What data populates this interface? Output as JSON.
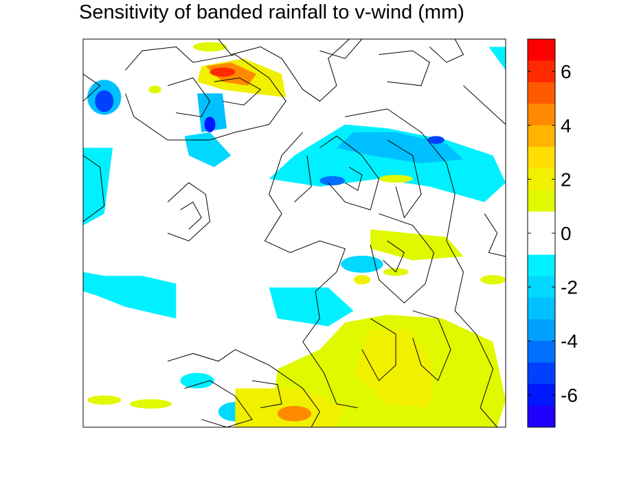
{
  "chart_data": {
    "type": "heatmap",
    "title": "Sensitivity of banded rainfall to v-wind (mm)",
    "xlabel": "",
    "ylabel": "",
    "colorbar": {
      "range": [
        -7.2,
        7.2
      ],
      "bin_width": 0.9,
      "tick_values": [
        6,
        4,
        2,
        0,
        -2,
        -4,
        -6
      ],
      "tick_labels": [
        "6",
        "4",
        "2",
        "0",
        "-2",
        "-4",
        "-6"
      ],
      "colors_top_to_bottom": [
        "#ff0000",
        "#ff2a00",
        "#ff5a00",
        "#ff8a00",
        "#ffb400",
        "#ffde00",
        "#f0f000",
        "#e0f800",
        "#ffffff",
        "#ffffff",
        "#00f0ff",
        "#00d8ff",
        "#00c0ff",
        "#00a0ff",
        "#0070ff",
        "#0040ff",
        "#0018ff",
        "#2000ff"
      ]
    },
    "overlay": "black contour lines (terrain)",
    "blobs": [
      {
        "value": 2.4,
        "shape": "polygon",
        "points": [
          [
            0.28,
            0.07
          ],
          [
            0.38,
            0.05
          ],
          [
            0.47,
            0.09
          ],
          [
            0.48,
            0.15
          ],
          [
            0.4,
            0.14
          ],
          [
            0.33,
            0.13
          ],
          [
            0.27,
            0.11
          ]
        ]
      },
      {
        "value": 4.8,
        "shape": "polygon",
        "points": [
          [
            0.29,
            0.07
          ],
          [
            0.35,
            0.06
          ],
          [
            0.41,
            0.09
          ],
          [
            0.39,
            0.12
          ],
          [
            0.33,
            0.11
          ]
        ]
      },
      {
        "value": 6.0,
        "shape": "ellipse",
        "cx": 0.33,
        "cy": 0.085,
        "rx": 0.03,
        "ry": 0.012
      },
      {
        "value": -3.0,
        "shape": "ellipse",
        "cx": 0.05,
        "cy": 0.15,
        "rx": 0.04,
        "ry": 0.045
      },
      {
        "value": -5.5,
        "shape": "ellipse",
        "cx": 0.05,
        "cy": 0.16,
        "rx": 0.022,
        "ry": 0.028
      },
      {
        "value": -1.5,
        "shape": "polygon",
        "points": [
          [
            0.0,
            0.28
          ],
          [
            0.07,
            0.28
          ],
          [
            0.05,
            0.45
          ],
          [
            0.0,
            0.48
          ]
        ]
      },
      {
        "value": -1.5,
        "shape": "polygon",
        "points": [
          [
            0.0,
            0.6
          ],
          [
            0.05,
            0.61
          ],
          [
            0.14,
            0.61
          ],
          [
            0.22,
            0.63
          ],
          [
            0.22,
            0.72
          ],
          [
            0.1,
            0.69
          ],
          [
            0.03,
            0.66
          ],
          [
            0.0,
            0.65
          ]
        ]
      },
      {
        "value": -2.3,
        "shape": "polygon",
        "points": [
          [
            0.24,
            0.25
          ],
          [
            0.3,
            0.24
          ],
          [
            0.35,
            0.3
          ],
          [
            0.31,
            0.33
          ],
          [
            0.25,
            0.3
          ]
        ]
      },
      {
        "value": -2.5,
        "shape": "polygon",
        "points": [
          [
            0.27,
            0.14
          ],
          [
            0.33,
            0.14
          ],
          [
            0.34,
            0.23
          ],
          [
            0.28,
            0.24
          ]
        ]
      },
      {
        "value": -6.0,
        "shape": "ellipse",
        "cx": 0.3,
        "cy": 0.22,
        "rx": 0.013,
        "ry": 0.02
      },
      {
        "value": -1.5,
        "shape": "polygon",
        "points": [
          [
            0.62,
            0.22
          ],
          [
            0.72,
            0.23
          ],
          [
            0.86,
            0.26
          ],
          [
            0.97,
            0.3
          ],
          [
            1.0,
            0.37
          ],
          [
            0.95,
            0.42
          ],
          [
            0.82,
            0.38
          ],
          [
            0.7,
            0.36
          ],
          [
            0.56,
            0.38
          ],
          [
            0.44,
            0.36
          ],
          [
            0.5,
            0.3
          ]
        ]
      },
      {
        "value": -2.5,
        "shape": "polygon",
        "points": [
          [
            0.64,
            0.24
          ],
          [
            0.74,
            0.24
          ],
          [
            0.86,
            0.27
          ],
          [
            0.9,
            0.31
          ],
          [
            0.8,
            0.32
          ],
          [
            0.68,
            0.3
          ],
          [
            0.6,
            0.28
          ]
        ]
      },
      {
        "value": -4.5,
        "shape": "ellipse",
        "cx": 0.59,
        "cy": 0.365,
        "rx": 0.03,
        "ry": 0.012
      },
      {
        "value": -5.5,
        "shape": "ellipse",
        "cx": 0.835,
        "cy": 0.26,
        "rx": 0.02,
        "ry": 0.01
      },
      {
        "value": -1.5,
        "shape": "polygon",
        "points": [
          [
            0.96,
            0.02
          ],
          [
            1.0,
            0.02
          ],
          [
            1.0,
            0.08
          ]
        ]
      },
      {
        "value": -1.5,
        "shape": "polygon",
        "points": [
          [
            0.44,
            0.64
          ],
          [
            0.58,
            0.64
          ],
          [
            0.64,
            0.7
          ],
          [
            0.58,
            0.74
          ],
          [
            0.46,
            0.72
          ]
        ]
      },
      {
        "value": -2.0,
        "shape": "ellipse",
        "cx": 0.66,
        "cy": 0.58,
        "rx": 0.05,
        "ry": 0.022
      },
      {
        "value": -1.5,
        "shape": "ellipse",
        "cx": 0.27,
        "cy": 0.88,
        "rx": 0.04,
        "ry": 0.02
      },
      {
        "value": -2.2,
        "shape": "ellipse",
        "cx": 0.36,
        "cy": 0.96,
        "rx": 0.04,
        "ry": 0.025
      },
      {
        "value": 1.5,
        "shape": "polygon",
        "points": [
          [
            0.62,
            0.73
          ],
          [
            0.72,
            0.71
          ],
          [
            0.85,
            0.72
          ],
          [
            0.97,
            0.78
          ],
          [
            1.0,
            0.93
          ],
          [
            0.98,
            1.0
          ],
          [
            0.55,
            1.0
          ],
          [
            0.45,
            0.94
          ],
          [
            0.46,
            0.85
          ],
          [
            0.56,
            0.8
          ]
        ]
      },
      {
        "value": 2.3,
        "shape": "polygon",
        "points": [
          [
            0.68,
            0.75
          ],
          [
            0.77,
            0.75
          ],
          [
            0.83,
            0.84
          ],
          [
            0.82,
            0.95
          ],
          [
            0.72,
            0.94
          ],
          [
            0.64,
            0.86
          ]
        ]
      },
      {
        "value": 2.4,
        "shape": "polygon",
        "points": [
          [
            0.36,
            0.9
          ],
          [
            0.52,
            0.9
          ],
          [
            0.62,
            0.95
          ],
          [
            0.6,
            1.0
          ],
          [
            0.36,
            1.0
          ]
        ]
      },
      {
        "value": 4.8,
        "shape": "ellipse",
        "cx": 0.5,
        "cy": 0.965,
        "rx": 0.04,
        "ry": 0.02
      },
      {
        "value": 1.5,
        "shape": "polygon",
        "points": [
          [
            0.68,
            0.49
          ],
          [
            0.86,
            0.51
          ],
          [
            0.9,
            0.56
          ],
          [
            0.78,
            0.57
          ],
          [
            0.68,
            0.54
          ]
        ]
      },
      {
        "value": 1.5,
        "shape": "ellipse",
        "cx": 0.97,
        "cy": 0.62,
        "rx": 0.03,
        "ry": 0.012
      },
      {
        "value": 2.0,
        "shape": "ellipse",
        "cx": 0.66,
        "cy": 0.62,
        "rx": 0.02,
        "ry": 0.012
      },
      {
        "value": 1.5,
        "shape": "ellipse",
        "cx": 0.05,
        "cy": 0.93,
        "rx": 0.04,
        "ry": 0.012
      },
      {
        "value": 1.5,
        "shape": "ellipse",
        "cx": 0.16,
        "cy": 0.94,
        "rx": 0.05,
        "ry": 0.012
      },
      {
        "value": 1.5,
        "shape": "ellipse",
        "cx": 0.3,
        "cy": 0.02,
        "rx": 0.04,
        "ry": 0.012
      },
      {
        "value": 1.5,
        "shape": "ellipse",
        "cx": 0.74,
        "cy": 0.36,
        "rx": 0.04,
        "ry": 0.01
      },
      {
        "value": 1.5,
        "shape": "ellipse",
        "cx": 0.17,
        "cy": 0.13,
        "rx": 0.015,
        "ry": 0.01
      },
      {
        "value": 1.5,
        "shape": "ellipse",
        "cx": 0.74,
        "cy": 0.6,
        "rx": 0.03,
        "ry": 0.01
      }
    ],
    "contours": [
      [
        [
          0.1,
          0.08
        ],
        [
          0.14,
          0.03
        ],
        [
          0.22,
          0.02
        ],
        [
          0.26,
          0.06
        ],
        [
          0.36,
          0.04
        ],
        [
          0.44,
          0.1
        ],
        [
          0.48,
          0.16
        ],
        [
          0.44,
          0.22
        ],
        [
          0.36,
          0.24
        ],
        [
          0.3,
          0.26
        ],
        [
          0.2,
          0.26
        ],
        [
          0.12,
          0.2
        ],
        [
          0.1,
          0.14
        ]
      ],
      [
        [
          0.2,
          0.12
        ],
        [
          0.26,
          0.1
        ],
        [
          0.3,
          0.16
        ],
        [
          0.28,
          0.2
        ],
        [
          0.22,
          0.19
        ]
      ],
      [
        [
          0.31,
          0.11
        ],
        [
          0.37,
          0.1
        ],
        [
          0.42,
          0.13
        ],
        [
          0.38,
          0.17
        ],
        [
          0.33,
          0.16
        ]
      ],
      [
        [
          0.32,
          0.0
        ],
        [
          0.35,
          0.04
        ],
        [
          0.42,
          0.02
        ],
        [
          0.47,
          0.05
        ],
        [
          0.52,
          0.13
        ],
        [
          0.56,
          0.16
        ],
        [
          0.6,
          0.12
        ],
        [
          0.58,
          0.05
        ],
        [
          0.63,
          0.0
        ]
      ],
      [
        [
          0.56,
          0.03
        ],
        [
          0.62,
          0.05
        ],
        [
          0.66,
          0.0
        ]
      ],
      [
        [
          0.7,
          0.04
        ],
        [
          0.78,
          0.03
        ],
        [
          0.82,
          0.06
        ],
        [
          0.8,
          0.12
        ],
        [
          0.72,
          0.11
        ]
      ],
      [
        [
          0.82,
          0.02
        ],
        [
          0.86,
          0.06
        ],
        [
          0.9,
          0.04
        ],
        [
          0.88,
          0.0
        ]
      ],
      [
        [
          0.0,
          0.3
        ],
        [
          0.04,
          0.33
        ],
        [
          0.05,
          0.43
        ],
        [
          0.0,
          0.47
        ]
      ],
      [
        [
          0.0,
          0.09
        ],
        [
          0.04,
          0.12
        ],
        [
          0.0,
          0.16
        ]
      ],
      [
        [
          0.2,
          0.42
        ],
        [
          0.25,
          0.37
        ],
        [
          0.29,
          0.4
        ],
        [
          0.3,
          0.47
        ],
        [
          0.25,
          0.52
        ],
        [
          0.2,
          0.5
        ]
      ],
      [
        [
          0.23,
          0.44
        ],
        [
          0.26,
          0.42
        ],
        [
          0.28,
          0.46
        ],
        [
          0.25,
          0.49
        ]
      ],
      [
        [
          0.52,
          0.24
        ],
        [
          0.47,
          0.3
        ],
        [
          0.44,
          0.4
        ],
        [
          0.47,
          0.45
        ],
        [
          0.43,
          0.52
        ],
        [
          0.49,
          0.55
        ],
        [
          0.56,
          0.52
        ],
        [
          0.62,
          0.54
        ],
        [
          0.6,
          0.6
        ],
        [
          0.55,
          0.65
        ],
        [
          0.56,
          0.72
        ],
        [
          0.52,
          0.78
        ],
        [
          0.57,
          0.86
        ],
        [
          0.6,
          0.94
        ],
        [
          0.65,
          0.95
        ]
      ],
      [
        [
          0.56,
          0.28
        ],
        [
          0.6,
          0.25
        ],
        [
          0.66,
          0.3
        ],
        [
          0.7,
          0.36
        ],
        [
          0.68,
          0.44
        ],
        [
          0.62,
          0.42
        ],
        [
          0.58,
          0.37
        ]
      ],
      [
        [
          0.63,
          0.33
        ],
        [
          0.66,
          0.35
        ],
        [
          0.65,
          0.39
        ],
        [
          0.62,
          0.37
        ]
      ],
      [
        [
          0.62,
          0.2
        ],
        [
          0.72,
          0.18
        ],
        [
          0.8,
          0.24
        ],
        [
          0.86,
          0.32
        ],
        [
          0.88,
          0.4
        ],
        [
          0.86,
          0.52
        ],
        [
          0.9,
          0.6
        ],
        [
          0.88,
          0.7
        ],
        [
          0.93,
          0.76
        ],
        [
          0.97,
          0.85
        ],
        [
          0.94,
          0.95
        ],
        [
          0.98,
          1.0
        ]
      ],
      [
        [
          0.72,
          0.26
        ],
        [
          0.78,
          0.3
        ],
        [
          0.8,
          0.4
        ],
        [
          0.76,
          0.46
        ],
        [
          0.74,
          0.38
        ]
      ],
      [
        [
          0.7,
          0.45
        ],
        [
          0.78,
          0.48
        ],
        [
          0.83,
          0.55
        ],
        [
          0.81,
          0.63
        ],
        [
          0.76,
          0.68
        ],
        [
          0.7,
          0.62
        ],
        [
          0.68,
          0.53
        ]
      ],
      [
        [
          0.72,
          0.52
        ],
        [
          0.76,
          0.55
        ],
        [
          0.74,
          0.6
        ],
        [
          0.71,
          0.57
        ]
      ],
      [
        [
          0.78,
          0.7
        ],
        [
          0.84,
          0.72
        ],
        [
          0.87,
          0.8
        ],
        [
          0.84,
          0.88
        ],
        [
          0.8,
          0.84
        ],
        [
          0.78,
          0.77
        ]
      ],
      [
        [
          0.68,
          0.72
        ],
        [
          0.74,
          0.76
        ],
        [
          0.74,
          0.84
        ],
        [
          0.7,
          0.88
        ],
        [
          0.66,
          0.8
        ]
      ],
      [
        [
          0.9,
          0.12
        ],
        [
          0.96,
          0.18
        ],
        [
          1.0,
          0.22
        ]
      ],
      [
        [
          0.95,
          0.45
        ],
        [
          0.98,
          0.5
        ],
        [
          0.96,
          0.55
        ],
        [
          1.0,
          0.56
        ]
      ],
      [
        [
          0.2,
          0.83
        ],
        [
          0.26,
          0.81
        ],
        [
          0.32,
          0.83
        ],
        [
          0.36,
          0.8
        ],
        [
          0.44,
          0.84
        ],
        [
          0.52,
          0.9
        ],
        [
          0.56,
          0.96
        ],
        [
          0.54,
          1.0
        ]
      ],
      [
        [
          0.24,
          0.9
        ],
        [
          0.3,
          0.88
        ],
        [
          0.36,
          0.92
        ],
        [
          0.4,
          0.98
        ],
        [
          0.34,
          1.0
        ],
        [
          0.28,
          0.98
        ]
      ],
      [
        [
          0.4,
          0.88
        ],
        [
          0.46,
          0.89
        ],
        [
          0.47,
          0.94
        ],
        [
          0.42,
          0.95
        ]
      ],
      [
        [
          0.53,
          0.3
        ],
        [
          0.54,
          0.38
        ],
        [
          0.5,
          0.42
        ]
      ]
    ]
  }
}
